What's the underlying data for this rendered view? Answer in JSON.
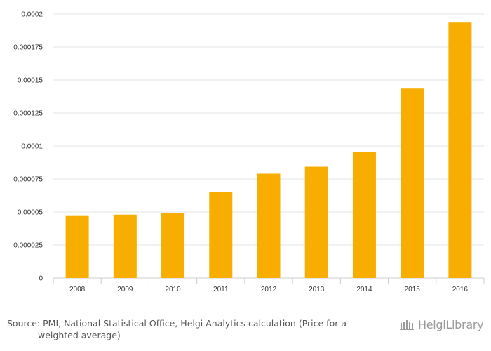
{
  "chart_data": {
    "type": "bar",
    "categories": [
      "2008",
      "2009",
      "2010",
      "2011",
      "2012",
      "2013",
      "2014",
      "2015",
      "2016"
    ],
    "values": [
      4.75e-05,
      4.8e-05,
      4.9e-05,
      6.5e-05,
      7.9e-05,
      8.43e-05,
      9.55e-05,
      0.0001435,
      0.0001935
    ],
    "ylim": [
      0,
      0.0002
    ],
    "yticks": [
      "0",
      "0.000025",
      "0.00005",
      "0.000075",
      "0.0001",
      "0.000125",
      "0.00015",
      "0.000175",
      "0.0002"
    ],
    "grid": true,
    "bar_color": "#F7AE00",
    "title": "",
    "xlabel": "",
    "ylabel": ""
  },
  "footer": {
    "source_line1": "Source: PMI, National Statistical Office, Helgi Analytics calculation (Price for a",
    "source_line2": "weighted average)",
    "logo_text": "HelgiLibrary"
  }
}
